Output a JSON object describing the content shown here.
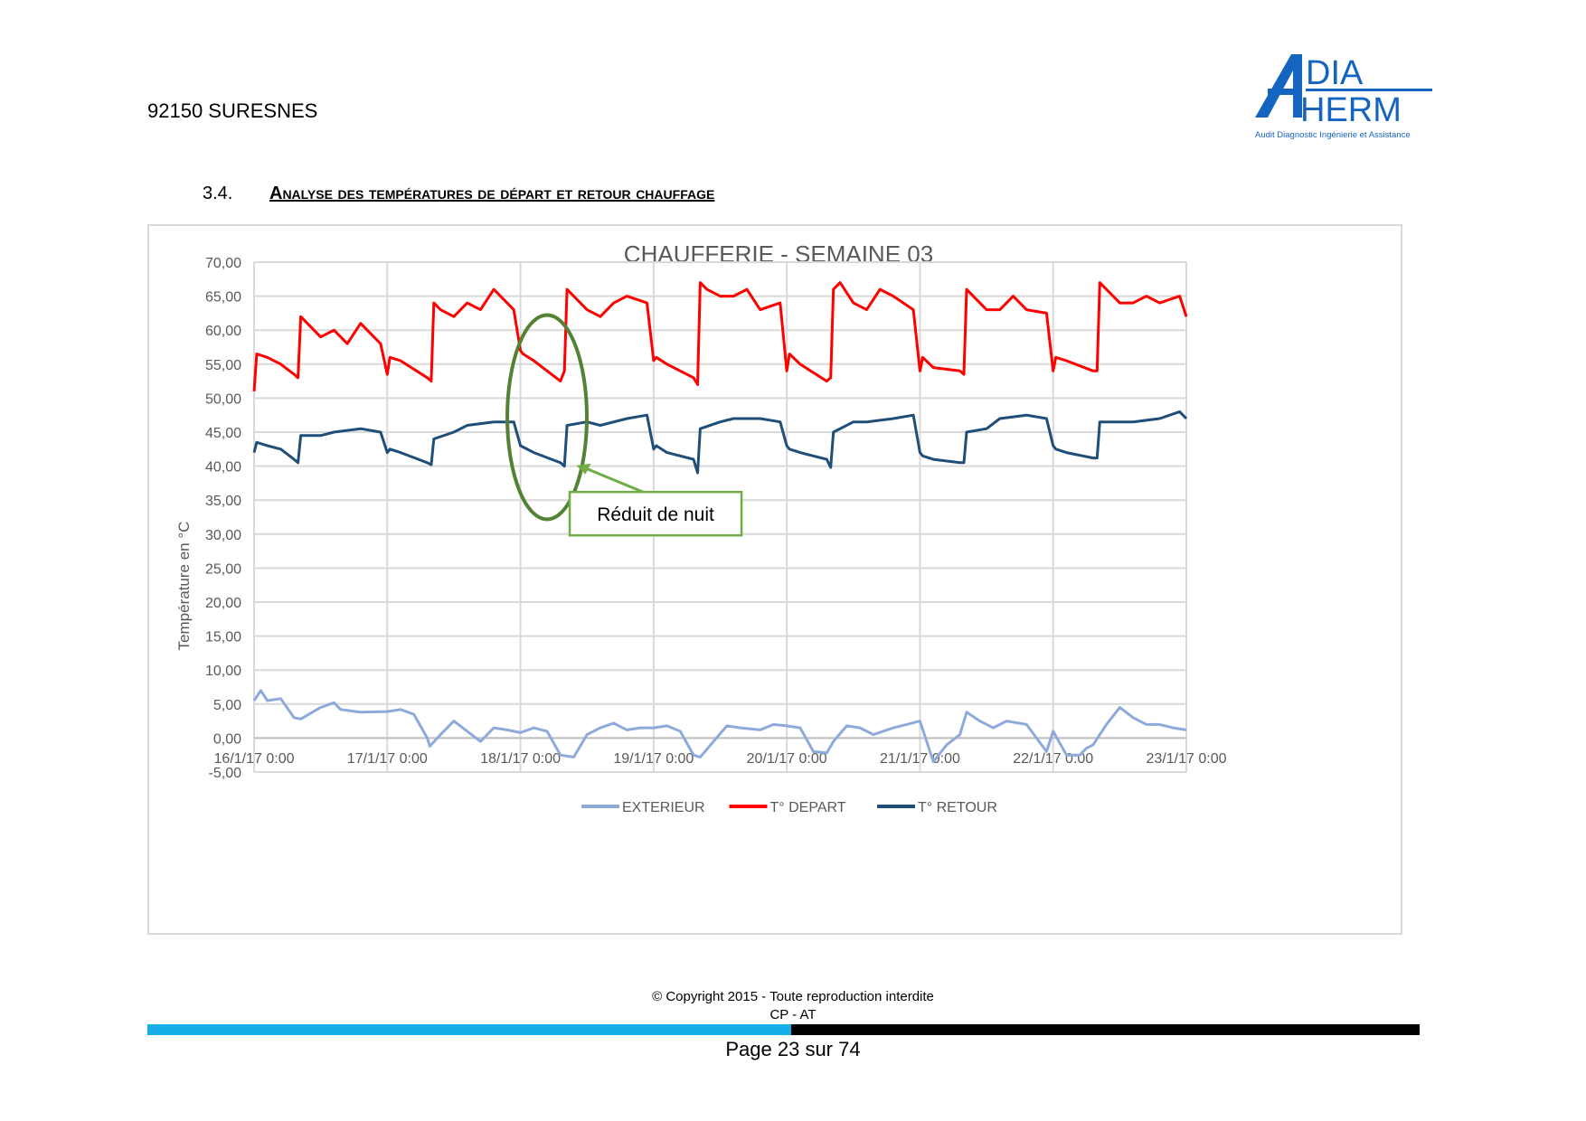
{
  "header": {
    "location": "92150 SURESNES"
  },
  "logo": {
    "line1": "DIA",
    "line2": "HERM",
    "tagline": "Audit Diagnostic Ingénierie et Assistance",
    "brand_color": "#1565c0"
  },
  "section": {
    "number": "3.4.",
    "title": "Analyse des températures de départ et retour chauffage"
  },
  "chart_data": {
    "type": "line",
    "title": "CHAUFFERIE - SEMAINE 03",
    "ylabel": "Température en °C",
    "xlabel": "",
    "ylim": [
      -5,
      70
    ],
    "y_ticks": [
      "-5,00",
      "0,00",
      "5,00",
      "10,00",
      "15,00",
      "20,00",
      "25,00",
      "30,00",
      "35,00",
      "40,00",
      "45,00",
      "50,00",
      "55,00",
      "60,00",
      "65,00",
      "70,00"
    ],
    "x_tick_labels": [
      "16/1/17 0:00",
      "17/1/17 0:00",
      "18/1/17 0:00",
      "19/1/17 0:00",
      "20/1/17 0:00",
      "21/1/17 0:00",
      "22/1/17 0:00",
      "23/1/17 0:00"
    ],
    "x_unit": "day offset from 16/1/17 0:00",
    "grid": true,
    "legend_position": "bottom",
    "series": [
      {
        "name": "EXTERIEUR",
        "color": "#8eaadb",
        "x": [
          0,
          0.05,
          0.1,
          0.2,
          0.3,
          0.35,
          0.5,
          0.6,
          0.65,
          0.8,
          1.0,
          1.1,
          1.2,
          1.3,
          1.32,
          1.4,
          1.5,
          1.6,
          1.7,
          1.8,
          1.9,
          2.0,
          2.1,
          2.2,
          2.3,
          2.4,
          2.5,
          2.6,
          2.7,
          2.8,
          2.9,
          3.0,
          3.1,
          3.2,
          3.3,
          3.35,
          3.45,
          3.55,
          3.65,
          3.8,
          3.9,
          4.0,
          4.1,
          4.2,
          4.3,
          4.35,
          4.45,
          4.55,
          4.65,
          4.8,
          4.9,
          5.0,
          5.1,
          5.2,
          5.3,
          5.35,
          5.45,
          5.55,
          5.65,
          5.8,
          5.95,
          6.0,
          6.1,
          6.2,
          6.25,
          6.3,
          6.35,
          6.4,
          6.5,
          6.6,
          6.7,
          6.8,
          6.9,
          7.0
        ],
        "y": [
          5.5,
          7.0,
          5.5,
          5.8,
          3.0,
          2.8,
          4.5,
          5.2,
          4.2,
          3.8,
          3.9,
          4.2,
          3.5,
          0,
          -1.2,
          0.5,
          2.5,
          1.0,
          -0.5,
          1.5,
          1.2,
          0.8,
          1.5,
          1.0,
          -2.5,
          -2.8,
          0.5,
          1.5,
          2.2,
          1.2,
          1.5,
          1.5,
          1.8,
          1.0,
          -2.5,
          -2.8,
          -0.5,
          1.8,
          1.5,
          1.2,
          2.0,
          1.8,
          1.5,
          -2.0,
          -2.2,
          -0.5,
          1.8,
          1.5,
          0.5,
          1.5,
          2.0,
          2.5,
          -3.5,
          -1.0,
          0.5,
          3.8,
          2.5,
          1.5,
          2.5,
          2.0,
          -2.0,
          1.0,
          -2.5,
          -2.5,
          -1.5,
          -1.0,
          0.5,
          2.0,
          4.5,
          3.0,
          2.0,
          2.0,
          1.5,
          1.2
        ]
      },
      {
        "name": "T° DEPART",
        "color": "#ff0000",
        "x": [
          0,
          0.02,
          0.1,
          0.2,
          0.3,
          0.33,
          0.35,
          0.4,
          0.5,
          0.6,
          0.7,
          0.8,
          0.95,
          1.0,
          1.02,
          1.1,
          1.3,
          1.33,
          1.35,
          1.4,
          1.5,
          1.6,
          1.7,
          1.8,
          1.95,
          2.0,
          2.02,
          2.1,
          2.3,
          2.33,
          2.35,
          2.4,
          2.5,
          2.6,
          2.7,
          2.8,
          2.95,
          3.0,
          3.02,
          3.1,
          3.3,
          3.33,
          3.35,
          3.4,
          3.5,
          3.6,
          3.7,
          3.8,
          3.95,
          4.0,
          4.02,
          4.1,
          4.3,
          4.33,
          4.35,
          4.4,
          4.5,
          4.6,
          4.7,
          4.8,
          4.95,
          5.0,
          5.02,
          5.1,
          5.3,
          5.33,
          5.35,
          5.4,
          5.5,
          5.6,
          5.7,
          5.8,
          5.95,
          6.0,
          6.02,
          6.1,
          6.3,
          6.33,
          6.35,
          6.4,
          6.5,
          6.6,
          6.7,
          6.8,
          6.95,
          7.0
        ],
        "y": [
          51,
          56.5,
          56,
          55,
          53.5,
          53,
          62,
          61,
          59,
          60,
          58,
          61,
          58,
          53.5,
          56,
          55.5,
          53,
          52.5,
          64,
          63,
          62,
          64,
          63,
          66,
          63,
          57,
          56.5,
          55.5,
          52.5,
          54,
          66,
          65,
          63,
          62,
          64,
          65,
          64,
          55.5,
          56,
          55,
          53,
          52,
          67,
          66,
          65,
          65,
          66,
          63,
          64,
          54,
          56.5,
          55,
          52.5,
          53,
          66,
          67,
          64,
          63,
          66,
          65,
          63,
          54,
          56,
          54.5,
          54,
          53.5,
          66,
          65,
          63,
          63,
          65,
          63,
          62.5,
          54,
          56,
          55.5,
          54,
          54,
          67,
          66,
          64,
          64,
          65,
          64,
          65,
          62
        ]
      },
      {
        "name": "T° RETOUR",
        "color": "#1f4e79",
        "x": [
          0,
          0.02,
          0.1,
          0.2,
          0.3,
          0.33,
          0.35,
          0.5,
          0.6,
          0.8,
          0.95,
          1.0,
          1.02,
          1.1,
          1.3,
          1.33,
          1.35,
          1.5,
          1.6,
          1.8,
          1.95,
          2.0,
          2.02,
          2.1,
          2.3,
          2.33,
          2.35,
          2.5,
          2.6,
          2.8,
          2.95,
          3.0,
          3.02,
          3.1,
          3.3,
          3.33,
          3.35,
          3.5,
          3.6,
          3.8,
          3.95,
          4.0,
          4.02,
          4.1,
          4.3,
          4.33,
          4.35,
          4.5,
          4.6,
          4.8,
          4.95,
          5.0,
          5.02,
          5.1,
          5.3,
          5.33,
          5.35,
          5.5,
          5.6,
          5.8,
          5.95,
          6.0,
          6.02,
          6.1,
          6.3,
          6.33,
          6.35,
          6.5,
          6.6,
          6.8,
          6.95,
          7.0
        ],
        "y": [
          42,
          43.5,
          43,
          42.5,
          41,
          40.5,
          44.5,
          44.5,
          45,
          45.5,
          45,
          42,
          42.5,
          42,
          40.5,
          40.2,
          44,
          45,
          46,
          46.5,
          46.5,
          43,
          42.8,
          42,
          40.5,
          40,
          46,
          46.5,
          46,
          47,
          47.5,
          42.5,
          43,
          42,
          41,
          39,
          45.5,
          46.5,
          47,
          47,
          46.5,
          43,
          42.5,
          42,
          41,
          39.8,
          45,
          46.5,
          46.5,
          47,
          47.5,
          42,
          41.5,
          41,
          40.5,
          40.5,
          45,
          45.5,
          47,
          47.5,
          47,
          43,
          42.5,
          42,
          41.2,
          41.2,
          46.5,
          46.5,
          46.5,
          47,
          48,
          47
        ]
      }
    ],
    "annotation": {
      "label": "Réduit de nuit",
      "color": "#70ad47"
    }
  },
  "footer": {
    "copyright": "© Copyright 2015 - Toute reproduction interdite",
    "sub": "CP - AT",
    "page": "Page 23 sur 74"
  }
}
